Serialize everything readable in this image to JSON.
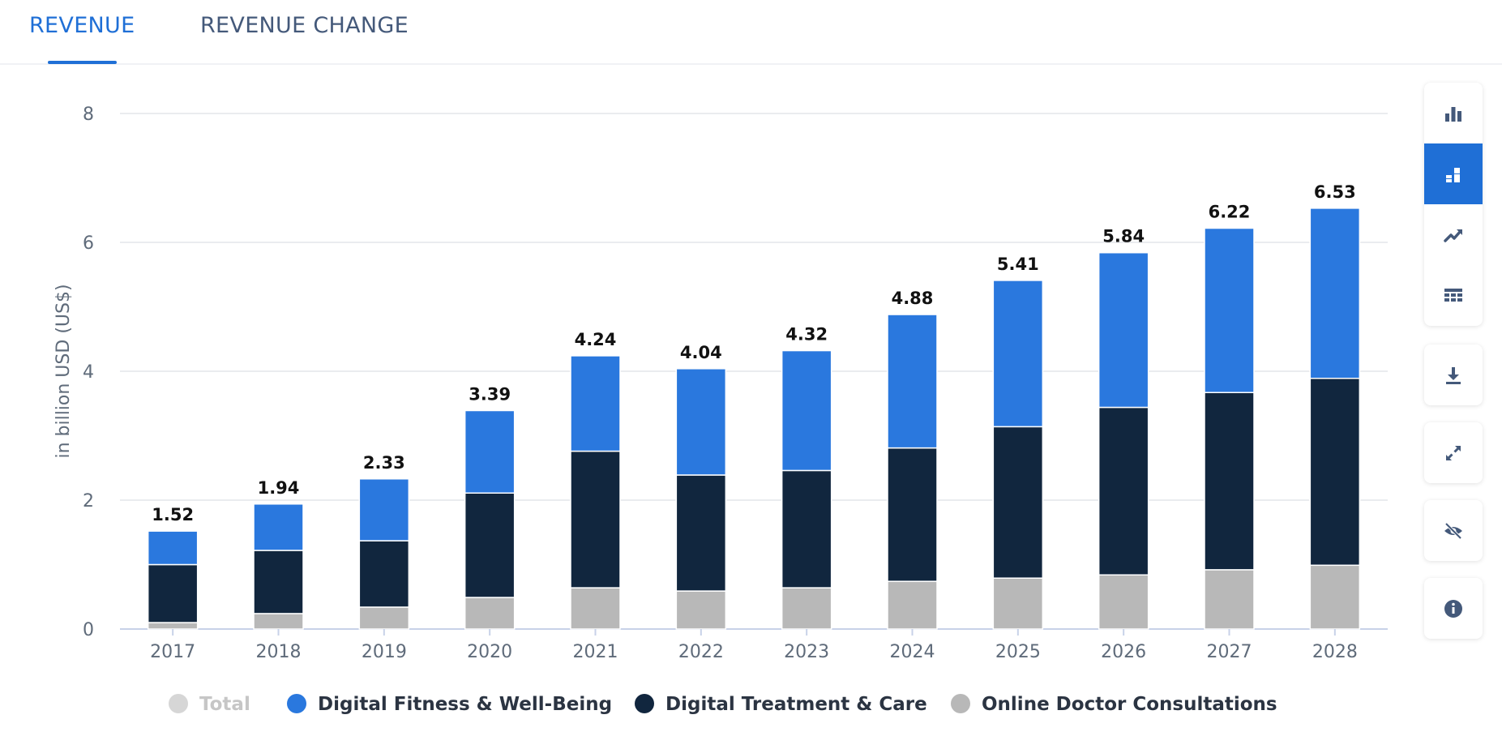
{
  "tabs": [
    {
      "label": "REVENUE",
      "active": true
    },
    {
      "label": "REVENUE CHANGE",
      "active": false
    }
  ],
  "colors": {
    "accent": "#1f6fd6",
    "fitness": "#2a78de",
    "treatment": "#11263e",
    "consultations": "#b8b8b8",
    "total_legend": "#d6d6d6"
  },
  "toolbar": {
    "view_buttons": [
      {
        "icon": "bar-chart-icon",
        "active": false
      },
      {
        "icon": "stacked-bar-chart-icon",
        "active": true
      },
      {
        "icon": "trend-line-icon",
        "active": false
      },
      {
        "icon": "table-icon",
        "active": false
      }
    ],
    "action_buttons": [
      {
        "icon": "download-icon"
      },
      {
        "icon": "fullscreen-icon"
      },
      {
        "icon": "hide-icon"
      },
      {
        "icon": "info-icon"
      }
    ]
  },
  "chart_data": {
    "type": "bar",
    "stacked": true,
    "title": "",
    "xlabel": "",
    "ylabel": "in billion USD (US$)",
    "ylim": [
      0,
      8
    ],
    "yticks": [
      0,
      2,
      4,
      6,
      8
    ],
    "grid": true,
    "legend_position": "bottom",
    "categories": [
      "2017",
      "2018",
      "2019",
      "2020",
      "2021",
      "2022",
      "2023",
      "2024",
      "2025",
      "2026",
      "2027",
      "2028"
    ],
    "series": [
      {
        "name": "Online Doctor Consultations",
        "values": [
          0.1,
          0.24,
          0.34,
          0.49,
          0.64,
          0.59,
          0.64,
          0.74,
          0.79,
          0.84,
          0.92,
          0.99
        ]
      },
      {
        "name": "Digital Treatment & Care",
        "values": [
          0.9,
          0.98,
          1.03,
          1.62,
          2.12,
          1.8,
          1.82,
          2.07,
          2.35,
          2.6,
          2.75,
          2.9
        ]
      },
      {
        "name": "Digital Fitness & Well-Being",
        "values": [
          0.52,
          0.72,
          0.96,
          1.28,
          1.48,
          1.65,
          1.86,
          2.07,
          2.27,
          2.4,
          2.55,
          2.64
        ]
      }
    ],
    "totals": [
      "1.52",
      "1.94",
      "2.33",
      "3.39",
      "4.24",
      "4.04",
      "4.32",
      "4.88",
      "5.41",
      "5.84",
      "6.22",
      "6.53"
    ],
    "legend": [
      {
        "label": "Total",
        "inactive": true
      },
      {
        "label": "Digital Fitness & Well-Being",
        "inactive": false
      },
      {
        "label": "Digital Treatment & Care",
        "inactive": false
      },
      {
        "label": "Online Doctor Consultations",
        "inactive": false
      }
    ]
  }
}
